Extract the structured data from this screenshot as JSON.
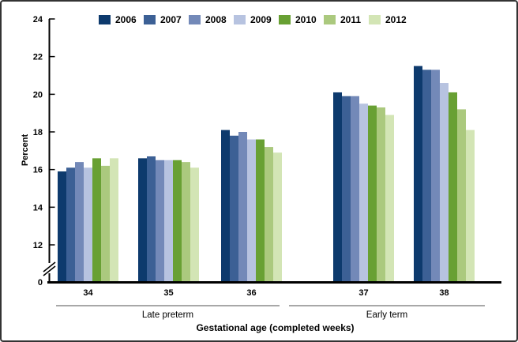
{
  "figure": {
    "background": "#ffffff",
    "border_color": "#333333"
  },
  "chart_data": {
    "type": "bar",
    "title": "",
    "xlabel": "Gestational age (completed weeks)",
    "ylabel": "Percent",
    "categories": [
      "34",
      "35",
      "36",
      "37",
      "38"
    ],
    "category_group_brackets": [
      {
        "label": "Late preterm",
        "from": "34",
        "to": "36"
      },
      {
        "label": "Early term",
        "from": "37",
        "to": "38"
      }
    ],
    "series": [
      {
        "name": "2006",
        "color": "#0d3a6d",
        "values": [
          15.9,
          16.6,
          18.1,
          20.1,
          21.5
        ]
      },
      {
        "name": "2007",
        "color": "#3c6095",
        "values": [
          16.1,
          16.7,
          17.8,
          19.9,
          21.3
        ]
      },
      {
        "name": "2008",
        "color": "#7389b8",
        "values": [
          16.4,
          16.5,
          18.0,
          19.9,
          21.3
        ]
      },
      {
        "name": "2009",
        "color": "#b7c3e0",
        "values": [
          16.1,
          16.5,
          17.6,
          19.5,
          20.6
        ]
      },
      {
        "name": "2010",
        "color": "#68a033",
        "values": [
          16.6,
          16.5,
          17.6,
          19.4,
          20.1
        ]
      },
      {
        "name": "2011",
        "color": "#abc97e",
        "values": [
          16.2,
          16.4,
          17.2,
          19.3,
          19.2
        ]
      },
      {
        "name": "2012",
        "color": "#d3e5b5",
        "values": [
          16.6,
          16.1,
          16.9,
          18.9,
          18.1
        ]
      }
    ],
    "y_axis": {
      "ticks": [
        0,
        12,
        14,
        16,
        18,
        20,
        22,
        24
      ],
      "display_range": [
        12,
        24
      ],
      "axis_break_between": [
        0,
        12
      ],
      "tick_color": "#000000"
    },
    "legend": {
      "position": "top"
    },
    "grid": false,
    "bracket_line_color": "#8c8c8c",
    "axis_color": "#000000"
  }
}
